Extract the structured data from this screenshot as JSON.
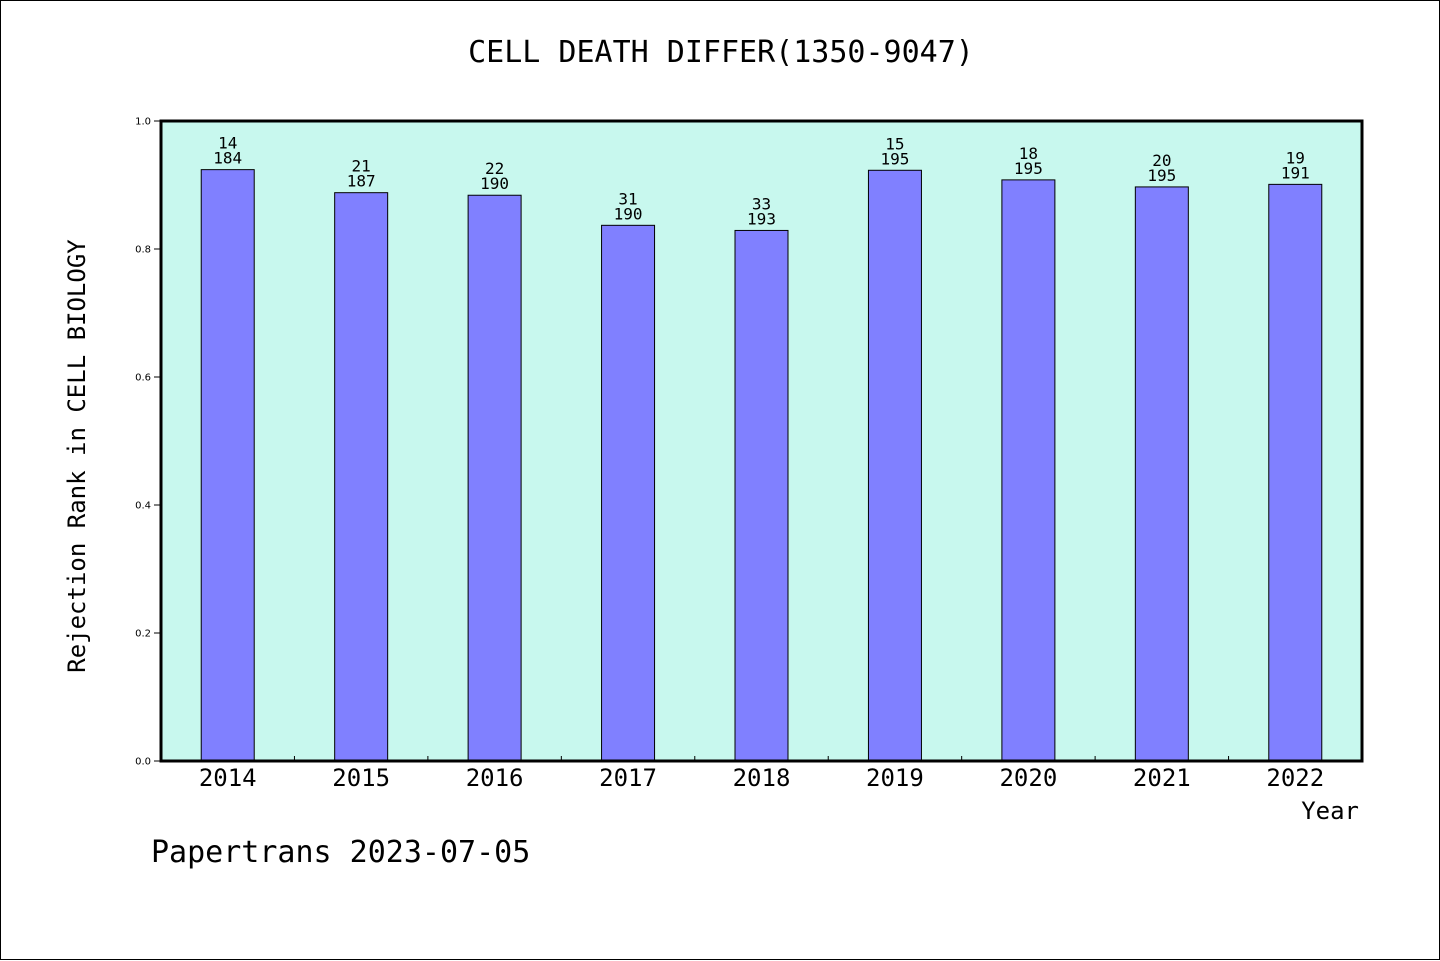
{
  "chart_data": {
    "type": "bar",
    "title": "CELL DEATH DIFFER(1350-9047)",
    "xlabel": "Year",
    "ylabel": "Rejection Rank in CELL BIOLOGY",
    "ylim": [
      0,
      1
    ],
    "yticks": [
      "0.0",
      "0.2",
      "0.4",
      "0.6",
      "0.8",
      "1.0"
    ],
    "categories": [
      "2014",
      "2015",
      "2016",
      "2017",
      "2018",
      "2019",
      "2020",
      "2021",
      "2022"
    ],
    "values": [
      0.924,
      0.888,
      0.884,
      0.837,
      0.829,
      0.923,
      0.908,
      0.897,
      0.901
    ],
    "bar_labels": [
      [
        "14",
        "184"
      ],
      [
        "21",
        "187"
      ],
      [
        "22",
        "190"
      ],
      [
        "31",
        "190"
      ],
      [
        "33",
        "193"
      ],
      [
        "15",
        "195"
      ],
      [
        "18",
        "195"
      ],
      [
        "20",
        "195"
      ],
      [
        "19",
        "191"
      ]
    ],
    "colors": {
      "plot_background": "#c8f8ee",
      "bar": "#8080ff",
      "border": "#000000"
    },
    "grid": false
  },
  "footer": "Papertrans 2023-07-05"
}
